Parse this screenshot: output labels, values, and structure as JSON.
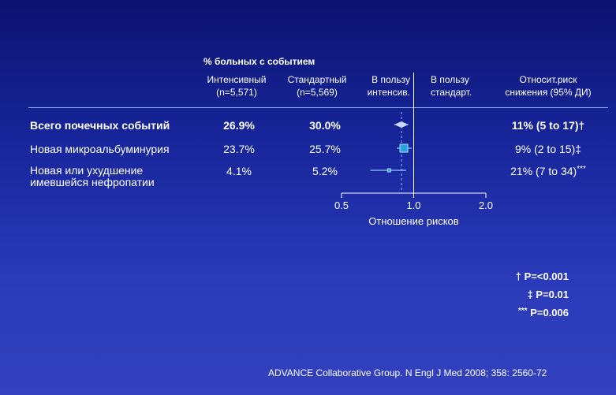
{
  "header": {
    "group_title": "% больных с событием",
    "col_intensive": "Интенсивный",
    "col_intensive_n": "(n=5,571)",
    "col_standard": "Стандартный",
    "col_standard_n": "(n=5,569)",
    "favor_intensive_1": "В пользу",
    "favor_intensive_2": "интенсив.",
    "favor_standard_1": "В пользу",
    "favor_standard_2": "стандарт.",
    "rr_1": "Относит.риск",
    "rr_2": "снижения (95% ДИ)"
  },
  "rows": [
    {
      "label": "Всего почечных событий",
      "intensive": "26.9%",
      "standard": "30.0%",
      "rr": "11% (5 to 17)",
      "mark": "†",
      "bold": true
    },
    {
      "label": "Новая микроальбуминурия",
      "intensive": "23.7%",
      "standard": "25.7%",
      "rr": "9% (2 to 15)",
      "mark": "‡",
      "bold": false
    },
    {
      "label_1": "Новая или ухудшение",
      "label_2": "имевшейся нефропатии",
      "intensive": "4.1%",
      "standard": "5.2%",
      "rr": "21% (7 to 34)",
      "mark": "***",
      "bold": false
    }
  ],
  "axis": {
    "xlabel": "Отношение рисков",
    "ticks": [
      "0.5",
      "1.0",
      "2.0"
    ]
  },
  "pvalues": [
    {
      "mark": "†",
      "text": "P=<0.001"
    },
    {
      "mark": "‡",
      "text": "P=0.01"
    },
    {
      "mark": "***",
      "text": "P=0.006"
    }
  ],
  "footer": "ADVANCE Collaborative Group. N Engl J Med 2008; 358: 2560-72",
  "chart_data": {
    "type": "forest",
    "xscale": "log",
    "xlim": [
      0.5,
      2.0
    ],
    "xticks": [
      0.5,
      1.0,
      2.0
    ],
    "xlabel": "Отношение рисков",
    "reference": 1.0,
    "overall_estimate_line": 0.89,
    "categories": [
      "Всего почечных событий",
      "Новая микроальбуминурия",
      "Новая или ухудшение имевшейся нефропатии"
    ],
    "estimates": [
      0.89,
      0.91,
      0.79
    ],
    "ci_low": [
      0.83,
      0.85,
      0.66
    ],
    "ci_high": [
      0.95,
      0.98,
      0.93
    ],
    "marker": [
      "diamond",
      "square",
      "square"
    ]
  },
  "colors": {
    "diamond": "#c9d6ff",
    "square": "#2d9fd9",
    "dashed": "#9fb3ff"
  }
}
